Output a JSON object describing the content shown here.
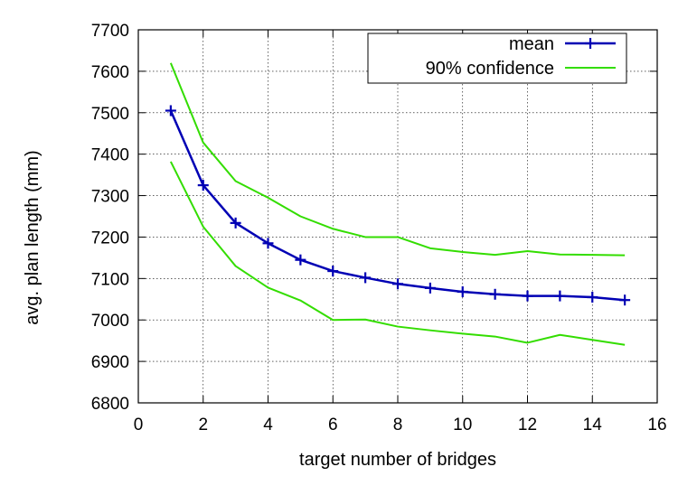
{
  "chart_data": {
    "type": "line",
    "title": "",
    "xlabel": "target number of bridges",
    "ylabel": "avg. plan length (mm)",
    "xlim": [
      0,
      16
    ],
    "ylim": [
      6800,
      7700
    ],
    "xticks": [
      0,
      2,
      4,
      6,
      8,
      10,
      12,
      14,
      16
    ],
    "yticks": [
      6800,
      6900,
      7000,
      7100,
      7200,
      7300,
      7400,
      7500,
      7600,
      7700
    ],
    "grid": true,
    "legend_position": "top-right",
    "series": [
      {
        "name": "mean",
        "color": "#0000b4",
        "marker": "plus",
        "x": [
          1,
          2,
          3,
          4,
          5,
          6,
          7,
          8,
          9,
          10,
          11,
          12,
          13,
          14,
          15
        ],
        "y": [
          7505,
          7325,
          7234,
          7185,
          7145,
          7118,
          7102,
          7087,
          7077,
          7068,
          7062,
          7058,
          7058,
          7055,
          7048
        ]
      },
      {
        "name": "90% confidence",
        "color": "#33dd00",
        "marker": "none",
        "x": [
          1,
          2,
          3,
          4,
          5,
          6,
          7,
          8,
          9,
          10,
          11,
          12,
          13,
          14,
          15
        ],
        "y": [
          7620,
          7428,
          7335,
          7295,
          7250,
          7220,
          7200,
          7200,
          7173,
          7164,
          7157,
          7166,
          7158,
          7157,
          7156
        ]
      },
      {
        "name": "",
        "color": "#33dd00",
        "marker": "none",
        "x": [
          1,
          2,
          3,
          4,
          5,
          6,
          7,
          8,
          9,
          10,
          11,
          12,
          13,
          14,
          15
        ],
        "y": [
          7382,
          7225,
          7130,
          7078,
          7047,
          7000,
          7001,
          6984,
          6975,
          6967,
          6960,
          6945,
          6964,
          6952,
          6940
        ]
      }
    ]
  }
}
